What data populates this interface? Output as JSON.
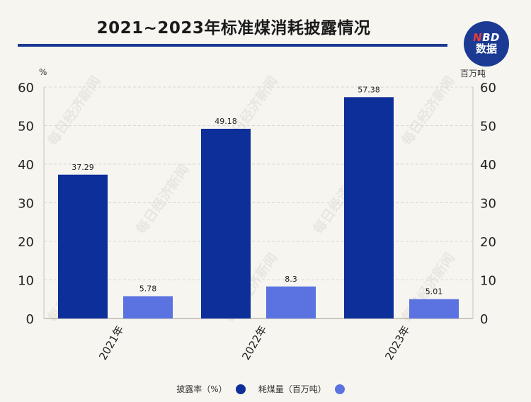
{
  "header": {
    "title": "2021~2023年标准煤消耗披露情况",
    "logo_line1_n": "N",
    "logo_line1_rest": "BD",
    "logo_line2": "数据"
  },
  "watermark_text": "每日经济新闻",
  "colors": {
    "primary": "#1b3a93",
    "series1": "#0d2f9a",
    "series2": "#5a73e0",
    "background": "#f7f5f0"
  },
  "chart_data": {
    "type": "bar",
    "categories": [
      "2021年",
      "2022年",
      "2023年"
    ],
    "series": [
      {
        "name": "披露率（%）",
        "values": [
          37.29,
          49.18,
          57.38
        ],
        "axis": "left"
      },
      {
        "name": "耗煤量（百万吨）",
        "values": [
          5.78,
          8.3,
          5.01
        ],
        "axis": "right"
      }
    ],
    "left_axis": {
      "unit": "%",
      "ylim": [
        0,
        60
      ],
      "ticks": [
        0,
        10,
        20,
        30,
        40,
        50,
        60
      ]
    },
    "right_axis": {
      "unit": "百万吨",
      "ylim": [
        0,
        60
      ],
      "ticks": [
        0,
        10,
        20,
        30,
        40,
        50,
        60
      ]
    },
    "grid": true,
    "legend_position": "bottom"
  }
}
